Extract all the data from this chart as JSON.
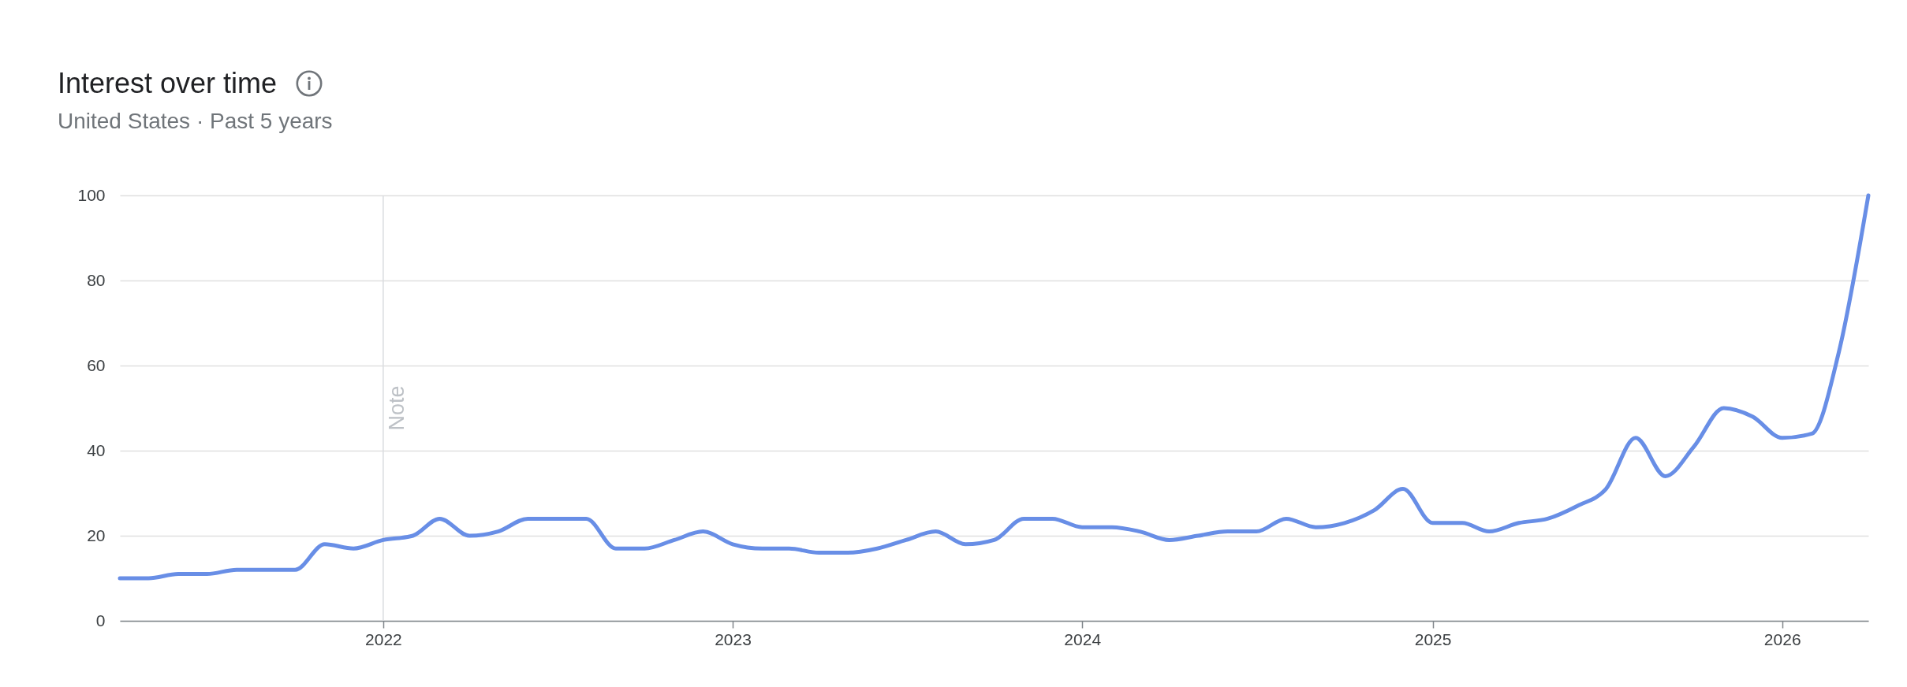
{
  "chart_data": {
    "type": "line",
    "title": "Interest over time",
    "subtitle": "United States · Past 5 years",
    "x": [
      "2021-04",
      "2021-05",
      "2021-06",
      "2021-07",
      "2021-08",
      "2021-09",
      "2021-10",
      "2021-11",
      "2021-12",
      "2022-01",
      "2022-02",
      "2022-03",
      "2022-04",
      "2022-05",
      "2022-06",
      "2022-07",
      "2022-08",
      "2022-09",
      "2022-10",
      "2022-11",
      "2022-12",
      "2023-01",
      "2023-02",
      "2023-03",
      "2023-04",
      "2023-05",
      "2023-06",
      "2023-07",
      "2023-08",
      "2023-09",
      "2023-10",
      "2023-11",
      "2023-12",
      "2024-01",
      "2024-02",
      "2024-03",
      "2024-04",
      "2024-05",
      "2024-06",
      "2024-07",
      "2024-08",
      "2024-09",
      "2024-10",
      "2024-11",
      "2024-12",
      "2025-01",
      "2025-02",
      "2025-03",
      "2025-04",
      "2025-05",
      "2025-06",
      "2025-07",
      "2025-08",
      "2025-09",
      "2025-10",
      "2025-11",
      "2025-12",
      "2026-01",
      "2026-02",
      "2026-03",
      "2026-04"
    ],
    "series": [
      {
        "color": "#688ee6",
        "values": [
          10,
          10,
          11,
          11,
          12,
          12,
          12,
          18,
          17,
          19,
          20,
          24,
          20,
          21,
          24,
          24,
          24,
          17,
          17,
          19,
          21,
          18,
          17,
          17,
          16,
          16,
          17,
          19,
          21,
          18,
          19,
          24,
          24,
          22,
          22,
          21,
          19,
          20,
          21,
          21,
          24,
          22,
          23,
          26,
          31,
          23,
          23,
          21,
          23,
          24,
          27,
          31,
          43,
          34,
          41,
          50,
          48,
          43,
          44,
          63,
          100
        ]
      }
    ],
    "xlim": [
      "2021-04",
      "2026-04"
    ],
    "xticks": [
      "2022",
      "2023",
      "2024",
      "2025",
      "2026"
    ],
    "ylim": [
      0,
      100
    ],
    "yticks": [
      0,
      20,
      40,
      60,
      80,
      100
    ],
    "grid": "y",
    "line_style": "solid",
    "ref_lines": [
      {
        "axis": "x",
        "value": "2022-01",
        "label": "Note",
        "color": "#dadce0"
      }
    ]
  }
}
